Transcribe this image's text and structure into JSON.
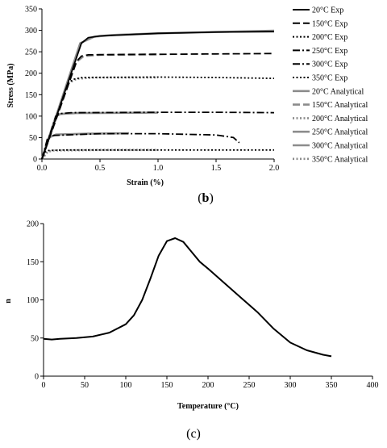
{
  "chart_data": [
    {
      "type": "line",
      "title": "",
      "xlabel": "Strain (%)",
      "ylabel": "Stress (MPa)",
      "panel_label": {
        "open": "(",
        "letter": "b",
        "close": ")"
      },
      "xlim": [
        0,
        2.0
      ],
      "ylim": [
        0,
        350
      ],
      "xticks": [
        "0.0",
        "0.5",
        "1.0",
        "1.5",
        "2.0"
      ],
      "yticks": [
        "0",
        "50",
        "100",
        "150",
        "200",
        "250",
        "300",
        "350"
      ],
      "grid": false,
      "legend_position": "right",
      "series": [
        {
          "name": "20°C Exp",
          "color": "#000000",
          "dash": "solid",
          "x": [
            0,
            0.34,
            0.4,
            0.5,
            1.0,
            1.5,
            2.0
          ],
          "y": [
            0,
            270,
            283,
            287,
            293,
            296,
            297
          ]
        },
        {
          "name": "150°C Exp",
          "color": "#000000",
          "dash": "longdash",
          "x": [
            0,
            0.3,
            0.34,
            0.4,
            1.0,
            1.5,
            2.0
          ],
          "y": [
            0,
            228,
            240,
            243,
            244,
            245,
            246
          ]
        },
        {
          "name": "200°C Exp",
          "color": "#000000",
          "dash": "dot",
          "x": [
            0,
            0.22,
            0.27,
            0.35,
            1.0,
            1.5,
            2.0
          ],
          "y": [
            0,
            175,
            186,
            190,
            191,
            190,
            188
          ]
        },
        {
          "name": "250°C Exp",
          "color": "#000000",
          "dash": "dashdot",
          "x": [
            0,
            0.12,
            0.16,
            0.25,
            1.0,
            1.5,
            2.0
          ],
          "y": [
            0,
            100,
            106,
            108,
            109,
            109,
            108
          ]
        },
        {
          "name": "300°C Exp",
          "color": "#000000",
          "dash": "dashdot",
          "x": [
            0,
            0.05,
            0.1,
            0.5,
            1.0,
            1.5,
            1.65,
            1.7
          ],
          "y": [
            0,
            50,
            55,
            59,
            59,
            56,
            50,
            38
          ]
        },
        {
          "name": "350°C Exp",
          "color": "#000000",
          "dash": "dot",
          "x": [
            0,
            0.03,
            0.06,
            0.2,
            1.0,
            2.0
          ],
          "y": [
            0,
            17,
            20,
            21,
            21,
            21
          ]
        },
        {
          "name": "20°C Analytical",
          "color": "#8c8c8c",
          "dash": "solid",
          "x": [
            0,
            0.33,
            0.45,
            0.6,
            1.0,
            2.0
          ],
          "y": [
            0,
            270,
            285,
            289,
            293,
            299
          ]
        },
        {
          "name": "150°C Analytical",
          "color": "#8c8c8c",
          "dash": "longdash",
          "x": [
            0,
            0.29,
            0.36,
            0.5,
            1.0
          ],
          "y": [
            0,
            225,
            240,
            243,
            244
          ]
        },
        {
          "name": "200°C Analytical",
          "color": "#8c8c8c",
          "dash": "dot",
          "x": [
            0,
            0.23,
            0.3,
            0.45,
            1.0
          ],
          "y": [
            0,
            177,
            187,
            190,
            190
          ]
        },
        {
          "name": "250°C  Analytical",
          "color": "#8c8c8c",
          "dash": "solid",
          "x": [
            0,
            0.12,
            0.16,
            0.3,
            1.0
          ],
          "y": [
            0,
            100,
            105,
            107,
            108
          ]
        },
        {
          "name": "300°C Analytical",
          "color": "#8c8c8c",
          "dash": "solid",
          "x": [
            0,
            0.06,
            0.12,
            0.4,
            0.75
          ],
          "y": [
            0,
            50,
            57,
            59,
            60
          ]
        },
        {
          "name": "350°C  Analytical",
          "color": "#8c8c8c",
          "dash": "dot",
          "x": [
            0,
            0.05,
            0.1,
            0.5,
            1.0
          ],
          "y": [
            0,
            17,
            20,
            21,
            21
          ]
        }
      ]
    },
    {
      "type": "line",
      "title": "",
      "xlabel": "Temperature (°C)",
      "ylabel": "n",
      "panel_label": {
        "open": "(",
        "letter": "c",
        "close": ")"
      },
      "xlim": [
        0,
        400
      ],
      "ylim": [
        0,
        200
      ],
      "xticks": [
        "0",
        "50",
        "100",
        "150",
        "200",
        "250",
        "300",
        "350",
        "400"
      ],
      "yticks": [
        "0",
        "50",
        "100",
        "150",
        "200"
      ],
      "grid": false,
      "series": [
        {
          "color": "#000000",
          "x": [
            0,
            10,
            20,
            40,
            60,
            80,
            100,
            110,
            120,
            130,
            140,
            150,
            160,
            170,
            180,
            190,
            200,
            220,
            240,
            260,
            280,
            300,
            320,
            340,
            350
          ],
          "y": [
            49,
            48,
            49,
            50,
            52,
            57,
            68,
            80,
            100,
            128,
            158,
            177,
            181,
            176,
            163,
            150,
            141,
            122,
            103,
            84,
            62,
            44,
            34,
            28,
            26
          ]
        }
      ]
    }
  ]
}
